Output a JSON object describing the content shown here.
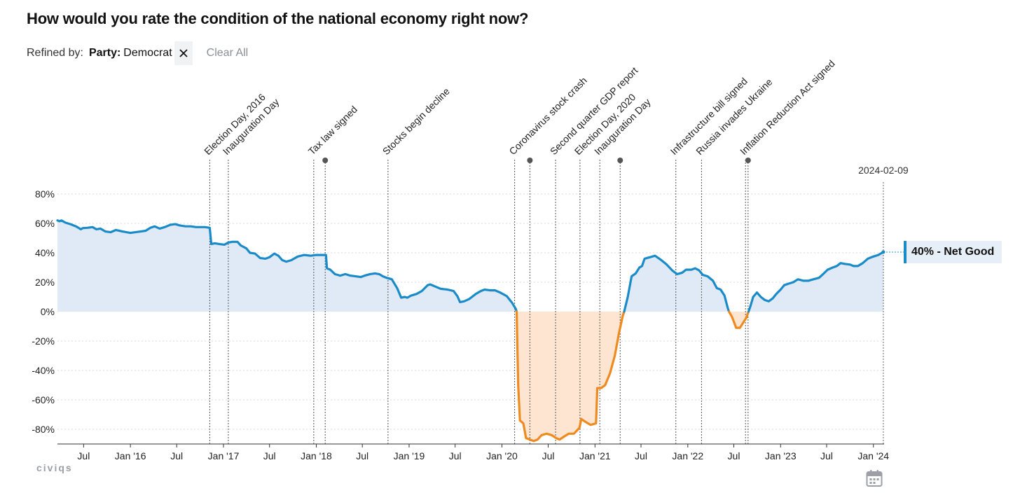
{
  "title": "How would you rate the condition of the national economy right now?",
  "filter": {
    "label": "Refined by:",
    "key": "Party:",
    "value": "Democrat",
    "clear_label": "Clear All"
  },
  "badge": "40% - Net Good",
  "brand": "civiqs",
  "colors": {
    "positive": "#1a8bc8",
    "negative": "#ef8a1f",
    "positive_fill": "#dfeaf6",
    "negative_fill": "#fde5d2"
  },
  "chart_data": {
    "type": "area",
    "y_unit": "%",
    "ylim": [
      -90,
      80
    ],
    "y_ticks": [
      80,
      60,
      40,
      20,
      0,
      -20,
      -40,
      -60,
      -80
    ],
    "y_tick_labels": [
      "80%",
      "60%",
      "40%",
      "20%",
      "0%",
      "-20%",
      "-40%",
      "-60%",
      "-80%"
    ],
    "xlim": [
      "2015-03-20",
      "2024-02-12"
    ],
    "x_ticks": [
      {
        "date": "2015-07-01",
        "label": "Jul"
      },
      {
        "date": "2016-01-01",
        "label": "Jan '16"
      },
      {
        "date": "2016-07-01",
        "label": "Jul"
      },
      {
        "date": "2017-01-01",
        "label": "Jan '17"
      },
      {
        "date": "2017-07-01",
        "label": "Jul"
      },
      {
        "date": "2018-01-01",
        "label": "Jan '18"
      },
      {
        "date": "2018-07-01",
        "label": "Jul"
      },
      {
        "date": "2019-01-01",
        "label": "Jan '19"
      },
      {
        "date": "2019-07-01",
        "label": "Jul"
      },
      {
        "date": "2020-01-01",
        "label": "Jan '20"
      },
      {
        "date": "2020-07-01",
        "label": "Jul"
      },
      {
        "date": "2021-01-01",
        "label": "Jan '21"
      },
      {
        "date": "2021-07-01",
        "label": "Jul"
      },
      {
        "date": "2022-01-01",
        "label": "Jan '22"
      },
      {
        "date": "2022-07-01",
        "label": "Jul"
      },
      {
        "date": "2023-01-01",
        "label": "Jan '23"
      },
      {
        "date": "2023-07-01",
        "label": "Jul"
      },
      {
        "date": "2024-01-01",
        "label": "Jan '24"
      }
    ],
    "grid": true,
    "series": [
      {
        "points": [
          [
            "2015-03-20",
            62
          ],
          [
            "2015-03-28",
            61.5
          ],
          [
            "2015-04-05",
            62
          ],
          [
            "2015-04-20",
            60.5
          ],
          [
            "2015-05-10",
            59.5
          ],
          [
            "2015-06-01",
            58
          ],
          [
            "2015-06-20",
            56
          ],
          [
            "2015-06-28",
            56.8
          ],
          [
            "2015-07-15",
            57
          ],
          [
            "2015-08-05",
            57.5
          ],
          [
            "2015-08-20",
            56
          ],
          [
            "2015-09-05",
            56.5
          ],
          [
            "2015-09-25",
            54.5
          ],
          [
            "2015-10-15",
            54
          ],
          [
            "2015-11-05",
            55.5
          ],
          [
            "2015-12-01",
            54.5
          ],
          [
            "2016-01-01",
            53.5
          ],
          [
            "2016-01-20",
            54
          ],
          [
            "2016-02-10",
            54.5
          ],
          [
            "2016-03-01",
            55
          ],
          [
            "2016-03-20",
            57
          ],
          [
            "2016-04-05",
            58
          ],
          [
            "2016-04-25",
            56.5
          ],
          [
            "2016-05-15",
            57.5
          ],
          [
            "2016-06-05",
            59
          ],
          [
            "2016-06-25",
            59.5
          ],
          [
            "2016-07-15",
            58.5
          ],
          [
            "2016-08-05",
            58
          ],
          [
            "2016-08-25",
            58
          ],
          [
            "2016-09-15",
            57.5
          ],
          [
            "2016-10-20",
            57.5
          ],
          [
            "2016-11-08",
            57
          ],
          [
            "2016-11-14",
            46
          ],
          [
            "2016-11-28",
            46.5
          ],
          [
            "2016-12-15",
            46
          ],
          [
            "2017-01-05",
            45.5
          ],
          [
            "2017-01-20",
            47
          ],
          [
            "2017-02-05",
            47.5
          ],
          [
            "2017-02-25",
            47.5
          ],
          [
            "2017-03-10",
            45
          ],
          [
            "2017-04-01",
            43
          ],
          [
            "2017-04-15",
            40
          ],
          [
            "2017-05-05",
            39.5
          ],
          [
            "2017-05-25",
            36.5
          ],
          [
            "2017-06-15",
            36
          ],
          [
            "2017-07-01",
            37
          ],
          [
            "2017-07-20",
            39.5
          ],
          [
            "2017-08-05",
            38
          ],
          [
            "2017-08-20",
            35
          ],
          [
            "2017-09-05",
            34
          ],
          [
            "2017-09-25",
            35
          ],
          [
            "2017-10-20",
            37.5
          ],
          [
            "2017-11-15",
            38.5
          ],
          [
            "2017-12-10",
            38
          ],
          [
            "2018-01-01",
            38.5
          ],
          [
            "2018-02-08",
            38.5
          ],
          [
            "2018-02-12",
            29.5
          ],
          [
            "2018-02-25",
            28.5
          ],
          [
            "2018-03-15",
            25.5
          ],
          [
            "2018-04-05",
            24.5
          ],
          [
            "2018-04-25",
            25.5
          ],
          [
            "2018-05-15",
            24.5
          ],
          [
            "2018-06-05",
            24
          ],
          [
            "2018-06-25",
            23.5
          ],
          [
            "2018-07-10",
            24.5
          ],
          [
            "2018-08-01",
            25.5
          ],
          [
            "2018-08-20",
            26
          ],
          [
            "2018-09-05",
            25.5
          ],
          [
            "2018-09-20",
            24
          ],
          [
            "2018-10-05",
            23
          ],
          [
            "2018-10-25",
            22
          ],
          [
            "2018-11-15",
            16
          ],
          [
            "2018-12-01",
            9.5
          ],
          [
            "2018-12-15",
            10
          ],
          [
            "2018-12-25",
            9.5
          ],
          [
            "2019-01-10",
            11
          ],
          [
            "2019-01-30",
            12
          ],
          [
            "2019-02-20",
            14
          ],
          [
            "2019-03-15",
            18
          ],
          [
            "2019-03-25",
            18.5
          ],
          [
            "2019-04-15",
            17
          ],
          [
            "2019-05-05",
            15.5
          ],
          [
            "2019-06-01",
            15
          ],
          [
            "2019-06-25",
            14
          ],
          [
            "2019-07-10",
            10.5
          ],
          [
            "2019-07-20",
            6.5
          ],
          [
            "2019-08-05",
            7
          ],
          [
            "2019-08-25",
            8.5
          ],
          [
            "2019-09-20",
            12
          ],
          [
            "2019-10-10",
            14
          ],
          [
            "2019-10-25",
            15
          ],
          [
            "2019-11-15",
            14.5
          ],
          [
            "2019-12-05",
            14.5
          ],
          [
            "2019-12-25",
            13
          ],
          [
            "2020-01-20",
            10.5
          ],
          [
            "2020-02-10",
            6
          ],
          [
            "2020-02-24",
            2
          ],
          [
            "2020-02-28",
            0
          ],
          [
            "2020-03-05",
            -50
          ],
          [
            "2020-03-12",
            -74
          ],
          [
            "2020-03-25",
            -76
          ],
          [
            "2020-04-05",
            -86
          ],
          [
            "2020-04-20",
            -87
          ],
          [
            "2020-05-05",
            -88
          ],
          [
            "2020-05-20",
            -87
          ],
          [
            "2020-06-05",
            -84
          ],
          [
            "2020-06-25",
            -83
          ],
          [
            "2020-07-15",
            -84
          ],
          [
            "2020-08-01",
            -86
          ],
          [
            "2020-08-15",
            -87
          ],
          [
            "2020-09-01",
            -85
          ],
          [
            "2020-09-20",
            -83
          ],
          [
            "2020-10-10",
            -83
          ],
          [
            "2020-11-01",
            -79
          ],
          [
            "2020-11-08",
            -73
          ],
          [
            "2020-11-25",
            -75
          ],
          [
            "2020-12-15",
            -77
          ],
          [
            "2021-01-05",
            -76
          ],
          [
            "2021-01-10",
            -52
          ],
          [
            "2021-01-25",
            -52
          ],
          [
            "2021-02-10",
            -50
          ],
          [
            "2021-03-01",
            -42
          ],
          [
            "2021-03-20",
            -30
          ],
          [
            "2021-04-05",
            -15
          ],
          [
            "2021-04-20",
            -3
          ],
          [
            "2021-04-26",
            0
          ],
          [
            "2021-05-10",
            10
          ],
          [
            "2021-05-25",
            24
          ],
          [
            "2021-06-10",
            26
          ],
          [
            "2021-06-25",
            30
          ],
          [
            "2021-07-05",
            31
          ],
          [
            "2021-07-15",
            36
          ],
          [
            "2021-08-05",
            37
          ],
          [
            "2021-08-25",
            38
          ],
          [
            "2021-09-15",
            35.5
          ],
          [
            "2021-10-10",
            32
          ],
          [
            "2021-11-01",
            28
          ],
          [
            "2021-11-20",
            25.5
          ],
          [
            "2021-12-10",
            26.5
          ],
          [
            "2021-12-25",
            28.5
          ],
          [
            "2022-01-15",
            28.5
          ],
          [
            "2022-01-30",
            29.5
          ],
          [
            "2022-02-15",
            28
          ],
          [
            "2022-03-01",
            25
          ],
          [
            "2022-03-20",
            24
          ],
          [
            "2022-04-10",
            21
          ],
          [
            "2022-04-25",
            16
          ],
          [
            "2022-05-10",
            15
          ],
          [
            "2022-05-25",
            11
          ],
          [
            "2022-06-08",
            2
          ],
          [
            "2022-06-12",
            0
          ],
          [
            "2022-06-25",
            -4
          ],
          [
            "2022-07-10",
            -11
          ],
          [
            "2022-07-25",
            -11
          ],
          [
            "2022-08-05",
            -8
          ],
          [
            "2022-08-20",
            -4
          ],
          [
            "2022-08-28",
            0
          ],
          [
            "2022-09-05",
            4
          ],
          [
            "2022-09-15",
            10
          ],
          [
            "2022-09-30",
            13
          ],
          [
            "2022-10-15",
            10
          ],
          [
            "2022-10-30",
            8
          ],
          [
            "2022-11-15",
            7
          ],
          [
            "2022-12-01",
            9
          ],
          [
            "2022-12-15",
            12
          ],
          [
            "2023-01-01",
            15
          ],
          [
            "2023-01-15",
            18
          ],
          [
            "2023-02-01",
            19
          ],
          [
            "2023-02-20",
            20
          ],
          [
            "2023-03-10",
            22
          ],
          [
            "2023-04-01",
            21
          ],
          [
            "2023-04-20",
            21
          ],
          [
            "2023-05-10",
            22
          ],
          [
            "2023-06-01",
            23
          ],
          [
            "2023-06-20",
            26
          ],
          [
            "2023-07-05",
            28.5
          ],
          [
            "2023-07-25",
            30
          ],
          [
            "2023-08-10",
            31
          ],
          [
            "2023-08-25",
            33
          ],
          [
            "2023-09-10",
            32.5
          ],
          [
            "2023-10-01",
            32
          ],
          [
            "2023-10-15",
            31
          ],
          [
            "2023-11-01",
            31
          ],
          [
            "2023-11-20",
            33
          ],
          [
            "2023-12-10",
            36
          ],
          [
            "2024-01-01",
            37.5
          ],
          [
            "2024-01-20",
            38.5
          ],
          [
            "2024-02-09",
            40.5
          ]
        ]
      }
    ],
    "events": [
      {
        "date": "2016-11-08",
        "label": "Election Day, 2016"
      },
      {
        "date": "2017-01-20",
        "label": "Inauguration Day"
      },
      {
        "date": "2017-12-22",
        "label": "Tax law signed"
      },
      {
        "date": "2018-02-05",
        "label": "",
        "marker": true
      },
      {
        "date": "2018-10-10",
        "label": "Stocks begin decline"
      },
      {
        "date": "2020-02-20",
        "label": "Coronavirus stock crash"
      },
      {
        "date": "2020-04-20",
        "label": "",
        "marker": true
      },
      {
        "date": "2020-07-30",
        "label": "Second quarter GDP report"
      },
      {
        "date": "2020-11-03",
        "label": "Election Day, 2020"
      },
      {
        "date": "2021-01-20",
        "label": "Inauguration Day"
      },
      {
        "date": "2021-04-10",
        "label": "",
        "marker": true
      },
      {
        "date": "2021-11-15",
        "label": "Infrastructure bill signed"
      },
      {
        "date": "2022-02-24",
        "label": "Russia invades Ukraine"
      },
      {
        "date": "2022-08-16",
        "label": "Inflation Reduction Act signed"
      },
      {
        "date": "2022-08-26",
        "label": "",
        "marker": true
      },
      {
        "date": "2024-02-09",
        "label": "2024-02-09",
        "current": true
      }
    ]
  }
}
